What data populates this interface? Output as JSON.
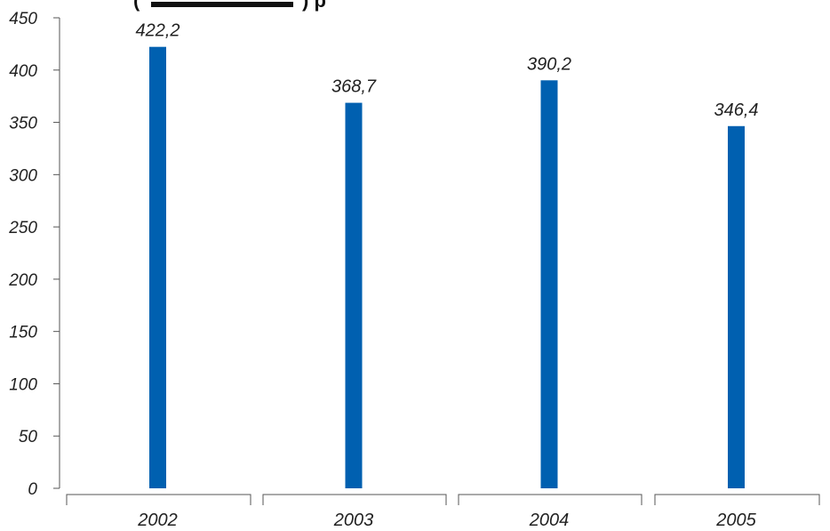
{
  "chart_data": {
    "type": "bar",
    "title": "",
    "xlabel": "",
    "ylabel": "",
    "categories": [
      "2002",
      "2003",
      "2004",
      "2005"
    ],
    "values": [
      422.2,
      368.7,
      390.2,
      346.4
    ],
    "data_labels": [
      "422,2",
      "368,7",
      "390,2",
      "346,4"
    ],
    "ylim": [
      0,
      450
    ],
    "yticks": [
      0,
      50,
      100,
      150,
      200,
      250,
      300,
      350,
      400,
      450
    ],
    "grid": false,
    "legend": "none",
    "bar_color": "#0060B0"
  }
}
